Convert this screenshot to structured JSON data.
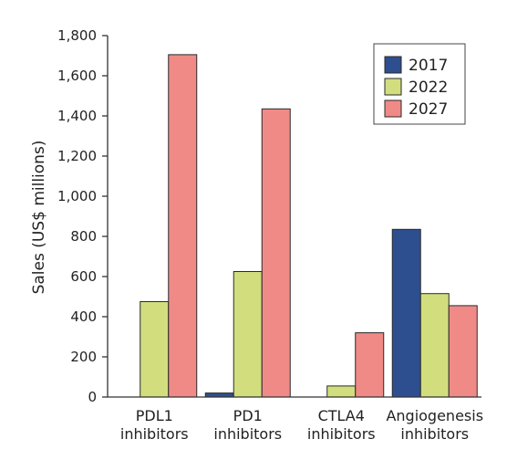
{
  "chart_data": {
    "type": "bar",
    "categories": [
      "PDL1\ninhibitors",
      "PD1\ninhibitors",
      "CTLA4\ninhibitors",
      "Angiogenesis\ninhibitors"
    ],
    "series": [
      {
        "name": "2017",
        "color": "#2e4f8f",
        "values": [
          0,
          20,
          0,
          835
        ]
      },
      {
        "name": "2022",
        "color": "#d2de7e",
        "values": [
          475,
          625,
          55,
          515
        ]
      },
      {
        "name": "2027",
        "color": "#f08a86",
        "values": [
          1705,
          1435,
          320,
          455
        ]
      }
    ],
    "ylabel": "Sales (US$ millions)",
    "xlabel": "",
    "ylim": [
      0,
      1800
    ],
    "yticks": [
      0,
      200,
      400,
      600,
      800,
      1000,
      1200,
      1400,
      1600,
      1800
    ],
    "ytick_labels": [
      "0",
      "200",
      "400",
      "600",
      "800",
      "1,000",
      "1,200",
      "1,400",
      "1,600",
      "1,800"
    ],
    "grid": false,
    "legend_position": "top-right"
  }
}
